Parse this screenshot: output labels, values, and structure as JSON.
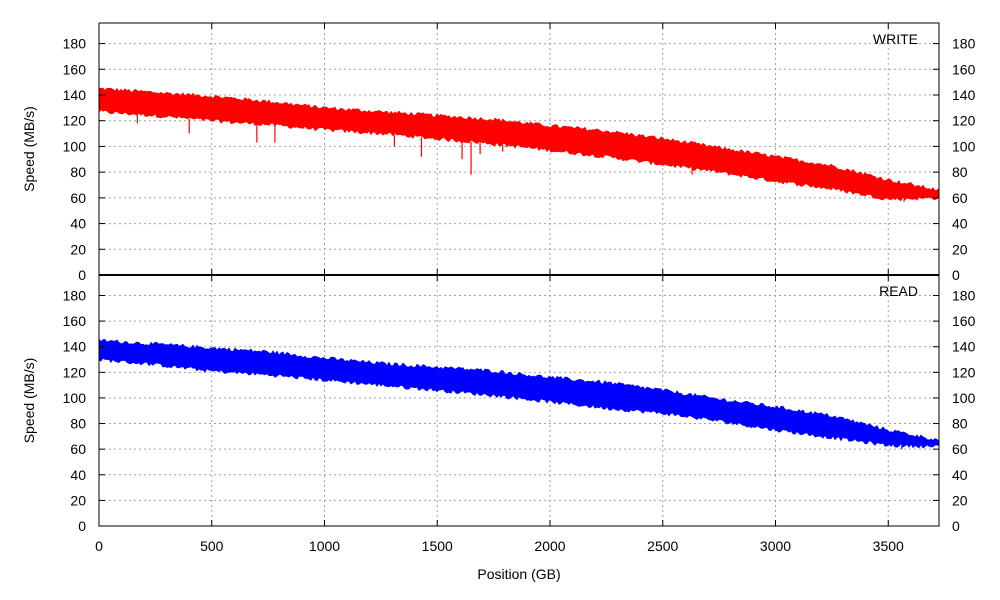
{
  "chart_data": {
    "type": "area",
    "xlabel": "Position (GB)",
    "x_ticks": [
      0,
      500,
      1000,
      1500,
      2000,
      2500,
      3000,
      3500
    ],
    "xlim": [
      0,
      3725
    ],
    "y_ticks": [
      0,
      20,
      40,
      60,
      80,
      100,
      120,
      140,
      160,
      180
    ],
    "grid": true,
    "panels": [
      {
        "name": "WRITE",
        "label": "WRITE",
        "ylabel": "Speed (MB/s)",
        "ylim": [
          0,
          196
        ],
        "color": "#ff0000",
        "x": [
          0,
          250,
          500,
          750,
          1000,
          1250,
          1500,
          1750,
          2000,
          2250,
          2500,
          2750,
          3000,
          3250,
          3500,
          3725
        ],
        "max": [
          145,
          142,
          139,
          135,
          130,
          127,
          124,
          121,
          116,
          112,
          106,
          99,
          92,
          85,
          74,
          66
        ],
        "min": [
          127,
          124,
          120,
          117,
          113,
          110,
          106,
          102,
          97,
          92,
          86,
          80,
          73,
          67,
          59,
          60
        ],
        "dips": [
          {
            "x": 170,
            "y": 118
          },
          {
            "x": 400,
            "y": 110
          },
          {
            "x": 700,
            "y": 103
          },
          {
            "x": 780,
            "y": 103
          },
          {
            "x": 1310,
            "y": 100
          },
          {
            "x": 1430,
            "y": 92
          },
          {
            "x": 1610,
            "y": 90
          },
          {
            "x": 1650,
            "y": 78
          },
          {
            "x": 1690,
            "y": 94
          },
          {
            "x": 1790,
            "y": 96
          },
          {
            "x": 2630,
            "y": 78
          },
          {
            "x": 3370,
            "y": 66
          },
          {
            "x": 3570,
            "y": 57
          }
        ]
      },
      {
        "name": "READ",
        "label": "READ",
        "ylabel": "Speed (MB/s)",
        "ylim": [
          0,
          196
        ],
        "color": "#0000ff",
        "x": [
          0,
          250,
          500,
          750,
          1000,
          1250,
          1500,
          1750,
          2000,
          2250,
          2500,
          2750,
          3000,
          3250,
          3500,
          3725
        ],
        "max": [
          145,
          142,
          139,
          136,
          131,
          127,
          124,
          121,
          116,
          112,
          106,
          99,
          93,
          86,
          75,
          67
        ],
        "min": [
          130,
          126,
          121,
          118,
          114,
          110,
          106,
          102,
          97,
          92,
          88,
          82,
          75,
          69,
          63,
          62
        ],
        "dips": [
          {
            "x": 3560,
            "y": 60
          }
        ]
      }
    ]
  }
}
